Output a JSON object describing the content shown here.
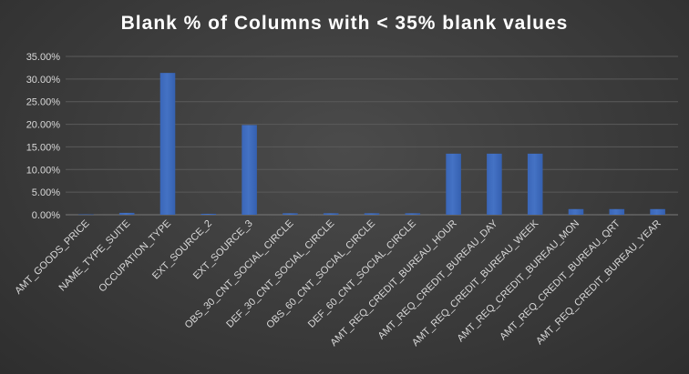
{
  "chart_data": {
    "type": "bar",
    "title": "Blank % of Columns with < 35% blank values",
    "xlabel": "",
    "ylabel": "",
    "ylim": [
      0,
      0.35
    ],
    "y_ticks": [
      "0.00%",
      "5.00%",
      "10.00%",
      "15.00%",
      "20.00%",
      "25.00%",
      "30.00%",
      "35.00%"
    ],
    "grid": true,
    "legend": "none",
    "bar_color": "#4472c4",
    "categories": [
      "AMT_GOODS_PRICE",
      "NAME_TYPE_SUITE",
      "OCCUPATION_TYPE",
      "EXT_SOURCE_2",
      "EXT_SOURCE_3",
      "OBS_30_CNT_SOCIAL_CIRCLE",
      "DEF_30_CNT_SOCIAL_CIRCLE",
      "OBS_60_CNT_SOCIAL_CIRCLE",
      "DEF_60_CNT_SOCIAL_CIRCLE",
      "AMT_REQ_CREDIT_BUREAU_HOUR",
      "AMT_REQ_CREDIT_BUREAU_DAY",
      "AMT_REQ_CREDIT_BUREAU_WEEK",
      "AMT_REQ_CREDIT_BUREAU_MON",
      "AMT_REQ_CREDIT_BUREAU_QRT",
      "AMT_REQ_CREDIT_BUREAU_YEAR"
    ],
    "values": [
      0.0009,
      0.0042,
      0.3135,
      0.0021,
      0.1983,
      0.0033,
      0.0033,
      0.0033,
      0.0033,
      0.135,
      0.135,
      0.135,
      0.0125,
      0.0125,
      0.0125
    ]
  }
}
